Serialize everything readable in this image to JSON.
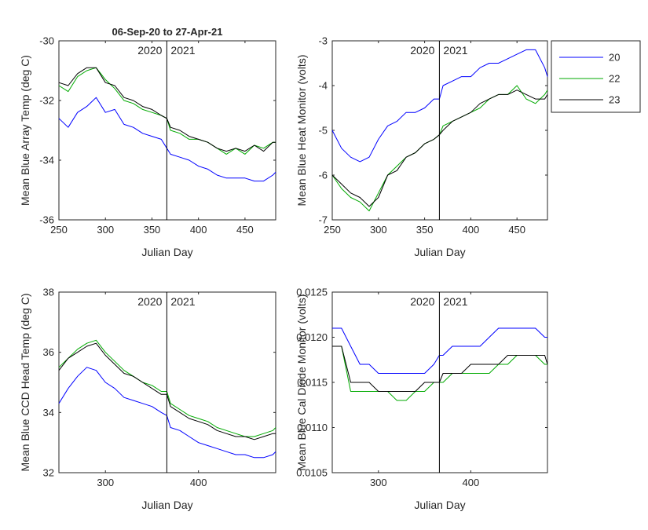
{
  "colors": {
    "s20": "#0000ff",
    "s22": "#00aa00",
    "s23": "#000000",
    "axis": "#262626"
  },
  "legend": {
    "placement": "top-right",
    "entries": [
      "20",
      "22",
      "23"
    ]
  },
  "chart_data": [
    {
      "type": "line",
      "title": "06-Sep-20 to 27-Apr-21",
      "xlabel": "Julian Day",
      "ylabel": "Mean Blue Array Temp (deg C)",
      "xlim": [
        250,
        483
      ],
      "ylim": [
        -36,
        -30
      ],
      "xticks": [
        250,
        300,
        350,
        400,
        450
      ],
      "yticks": [
        -36,
        -34,
        -32,
        -30
      ],
      "vline": 366,
      "year_labels": [
        "2020",
        "2021"
      ],
      "series": [
        {
          "name": "20",
          "x": [
            250,
            260,
            270,
            280,
            290,
            300,
            310,
            320,
            330,
            340,
            350,
            360,
            366,
            370,
            380,
            390,
            400,
            410,
            420,
            430,
            440,
            450,
            460,
            470,
            480,
            483
          ],
          "y": [
            -32.6,
            -32.9,
            -32.4,
            -32.2,
            -31.9,
            -32.4,
            -32.3,
            -32.8,
            -32.9,
            -33.1,
            -33.2,
            -33.3,
            -33.6,
            -33.8,
            -33.9,
            -34.0,
            -34.2,
            -34.3,
            -34.5,
            -34.6,
            -34.6,
            -34.6,
            -34.7,
            -34.7,
            -34.5,
            -34.4
          ]
        },
        {
          "name": "22",
          "x": [
            250,
            260,
            270,
            280,
            290,
            300,
            310,
            320,
            330,
            340,
            350,
            360,
            366,
            370,
            380,
            390,
            400,
            410,
            420,
            430,
            440,
            450,
            460,
            470,
            480,
            483
          ],
          "y": [
            -31.5,
            -31.7,
            -31.2,
            -31.0,
            -30.9,
            -31.3,
            -31.6,
            -32.0,
            -32.1,
            -32.3,
            -32.4,
            -32.5,
            -32.6,
            -33.0,
            -33.1,
            -33.3,
            -33.3,
            -33.4,
            -33.6,
            -33.8,
            -33.6,
            -33.8,
            -33.5,
            -33.6,
            -33.4,
            -33.4
          ]
        },
        {
          "name": "23",
          "x": [
            250,
            260,
            270,
            280,
            290,
            300,
            310,
            320,
            330,
            340,
            350,
            360,
            366,
            370,
            380,
            390,
            400,
            410,
            420,
            430,
            440,
            450,
            460,
            470,
            480,
            483
          ],
          "y": [
            -31.4,
            -31.5,
            -31.1,
            -30.9,
            -30.9,
            -31.4,
            -31.5,
            -31.9,
            -32.0,
            -32.2,
            -32.3,
            -32.5,
            -32.6,
            -32.9,
            -33.0,
            -33.2,
            -33.3,
            -33.4,
            -33.6,
            -33.7,
            -33.6,
            -33.7,
            -33.5,
            -33.7,
            -33.4,
            -33.4
          ]
        }
      ]
    },
    {
      "type": "line",
      "xlabel": "Julian Day",
      "ylabel": "Mean Blue Heat Monitor (volts)",
      "xlim": [
        250,
        483
      ],
      "ylim": [
        -7,
        -3
      ],
      "xticks": [
        250,
        300,
        350,
        400,
        450
      ],
      "yticks": [
        -7,
        -6,
        -5,
        -4,
        -3
      ],
      "vline": 366,
      "year_labels": [
        "2020",
        "2021"
      ],
      "series": [
        {
          "name": "20",
          "x": [
            250,
            260,
            270,
            280,
            290,
            300,
            310,
            320,
            330,
            340,
            350,
            360,
            366,
            370,
            380,
            390,
            400,
            410,
            420,
            430,
            440,
            450,
            460,
            470,
            480,
            483
          ],
          "y": [
            -5.0,
            -5.4,
            -5.6,
            -5.7,
            -5.6,
            -5.2,
            -4.9,
            -4.8,
            -4.6,
            -4.6,
            -4.5,
            -4.3,
            -4.3,
            -4.0,
            -3.9,
            -3.8,
            -3.8,
            -3.6,
            -3.5,
            -3.5,
            -3.4,
            -3.3,
            -3.2,
            -3.2,
            -3.6,
            -3.8
          ]
        },
        {
          "name": "22",
          "x": [
            250,
            260,
            270,
            280,
            290,
            300,
            310,
            320,
            330,
            340,
            350,
            360,
            366,
            370,
            380,
            390,
            400,
            410,
            420,
            430,
            440,
            450,
            460,
            470,
            480,
            483
          ],
          "y": [
            -6.0,
            -6.3,
            -6.5,
            -6.6,
            -6.8,
            -6.4,
            -6.0,
            -5.8,
            -5.6,
            -5.5,
            -5.3,
            -5.2,
            -5.1,
            -4.9,
            -4.8,
            -4.7,
            -4.6,
            -4.5,
            -4.3,
            -4.2,
            -4.2,
            -4.0,
            -4.3,
            -4.4,
            -4.2,
            -4.1
          ]
        },
        {
          "name": "23",
          "x": [
            250,
            260,
            270,
            280,
            290,
            300,
            310,
            320,
            330,
            340,
            350,
            360,
            366,
            370,
            380,
            390,
            400,
            410,
            420,
            430,
            440,
            450,
            460,
            470,
            480,
            483
          ],
          "y": [
            -6.0,
            -6.2,
            -6.4,
            -6.5,
            -6.7,
            -6.5,
            -6.0,
            -5.9,
            -5.6,
            -5.5,
            -5.3,
            -5.2,
            -5.1,
            -5.0,
            -4.8,
            -4.7,
            -4.6,
            -4.4,
            -4.3,
            -4.2,
            -4.2,
            -4.1,
            -4.2,
            -4.3,
            -4.3,
            -4.2
          ]
        }
      ]
    },
    {
      "type": "line",
      "xlabel": "Julian Day",
      "ylabel": "Mean Blue CCD Head Temp (deg C)",
      "xlim": [
        250,
        483
      ],
      "ylim": [
        32,
        38
      ],
      "xticks": [
        300,
        400
      ],
      "yticks": [
        32,
        34,
        36,
        38
      ],
      "vline": 366,
      "year_labels": [
        "2020",
        "2021"
      ],
      "series": [
        {
          "name": "20",
          "x": [
            250,
            260,
            270,
            280,
            290,
            300,
            310,
            320,
            330,
            340,
            350,
            360,
            366,
            370,
            380,
            390,
            400,
            410,
            420,
            430,
            440,
            450,
            460,
            470,
            480,
            483
          ],
          "y": [
            34.3,
            34.8,
            35.2,
            35.5,
            35.4,
            35.0,
            34.8,
            34.5,
            34.4,
            34.3,
            34.2,
            34.0,
            33.9,
            33.5,
            33.4,
            33.2,
            33.0,
            32.9,
            32.8,
            32.7,
            32.6,
            32.6,
            32.5,
            32.5,
            32.6,
            32.7
          ]
        },
        {
          "name": "22",
          "x": [
            250,
            260,
            270,
            280,
            290,
            300,
            310,
            320,
            330,
            340,
            350,
            360,
            366,
            370,
            380,
            390,
            400,
            410,
            420,
            430,
            440,
            450,
            460,
            470,
            480,
            483
          ],
          "y": [
            35.5,
            35.8,
            36.1,
            36.3,
            36.4,
            36.0,
            35.7,
            35.4,
            35.2,
            35.0,
            34.9,
            34.7,
            34.7,
            34.3,
            34.1,
            33.9,
            33.8,
            33.7,
            33.5,
            33.4,
            33.3,
            33.2,
            33.2,
            33.3,
            33.4,
            33.5
          ]
        },
        {
          "name": "23",
          "x": [
            250,
            260,
            270,
            280,
            290,
            300,
            310,
            320,
            330,
            340,
            350,
            360,
            366,
            370,
            380,
            390,
            400,
            410,
            420,
            430,
            440,
            450,
            460,
            470,
            480,
            483
          ],
          "y": [
            35.4,
            35.8,
            36.0,
            36.2,
            36.3,
            35.9,
            35.6,
            35.3,
            35.2,
            35.0,
            34.8,
            34.6,
            34.6,
            34.2,
            34.0,
            33.8,
            33.7,
            33.6,
            33.4,
            33.3,
            33.2,
            33.2,
            33.1,
            33.2,
            33.3,
            33.3
          ]
        }
      ]
    },
    {
      "type": "line",
      "xlabel": "Julian Day",
      "ylabel": "Mean Blue Cal Diode Monitor (volts)",
      "xlim": [
        250,
        483
      ],
      "ylim": [
        0.0105,
        0.0125
      ],
      "xticks": [
        300,
        400
      ],
      "yticks": [
        0.0105,
        0.011,
        0.0115,
        0.012,
        0.0125
      ],
      "ytick_labels": [
        "0.0105",
        "0.0110",
        "0.0115",
        "0.0120",
        "0.0125"
      ],
      "vline": 366,
      "year_labels": [
        "2020",
        "2021"
      ],
      "series": [
        {
          "name": "20",
          "x": [
            250,
            260,
            270,
            280,
            290,
            300,
            310,
            320,
            330,
            340,
            350,
            360,
            366,
            370,
            380,
            390,
            400,
            410,
            420,
            430,
            440,
            450,
            460,
            470,
            480,
            483
          ],
          "y": [
            0.0121,
            0.0121,
            0.0119,
            0.0117,
            0.0117,
            0.0116,
            0.0116,
            0.0116,
            0.0116,
            0.0116,
            0.0116,
            0.0117,
            0.0118,
            0.0118,
            0.0119,
            0.0119,
            0.0119,
            0.0119,
            0.012,
            0.0121,
            0.0121,
            0.0121,
            0.0121,
            0.0121,
            0.012,
            0.012
          ]
        },
        {
          "name": "22",
          "x": [
            250,
            260,
            270,
            280,
            290,
            300,
            310,
            320,
            330,
            340,
            350,
            360,
            366,
            370,
            380,
            390,
            400,
            410,
            420,
            430,
            440,
            450,
            460,
            470,
            480,
            483
          ],
          "y": [
            0.0119,
            0.0119,
            0.0114,
            0.0114,
            0.0114,
            0.0114,
            0.0114,
            0.0113,
            0.0113,
            0.0114,
            0.0114,
            0.0115,
            0.0115,
            0.0115,
            0.0116,
            0.0116,
            0.0116,
            0.0116,
            0.0116,
            0.0117,
            0.0117,
            0.0118,
            0.0118,
            0.0118,
            0.0117,
            0.0117
          ]
        },
        {
          "name": "23",
          "x": [
            250,
            260,
            270,
            280,
            290,
            300,
            310,
            320,
            330,
            340,
            350,
            360,
            366,
            370,
            380,
            390,
            400,
            410,
            420,
            430,
            440,
            450,
            460,
            470,
            480,
            483
          ],
          "y": [
            0.0119,
            0.0119,
            0.0115,
            0.0115,
            0.0115,
            0.0114,
            0.0114,
            0.0114,
            0.0114,
            0.0114,
            0.0115,
            0.0115,
            0.0115,
            0.0116,
            0.0116,
            0.0116,
            0.0117,
            0.0117,
            0.0117,
            0.0117,
            0.0118,
            0.0118,
            0.0118,
            0.0118,
            0.0118,
            0.0117
          ]
        }
      ]
    }
  ]
}
